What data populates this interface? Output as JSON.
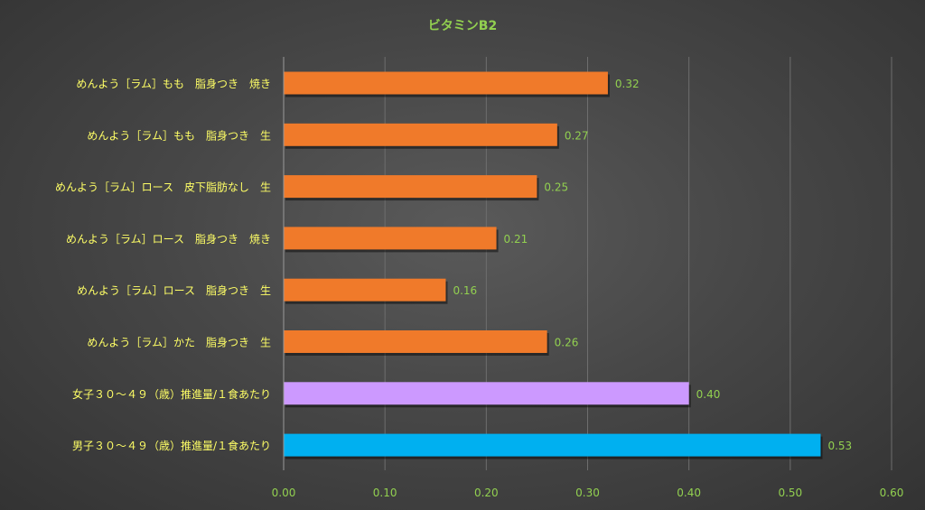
{
  "chart_data": {
    "type": "bar",
    "orientation": "horizontal",
    "title": "ビタミンB2",
    "categories": [
      "めんよう［ラム］もも　脂身つき　焼き",
      "めんよう［ラム］もも　脂身つき　生",
      "めんよう［ラム］ロース　皮下脂肪なし　生",
      "めんよう［ラム］ロース　脂身つき　焼き",
      "めんよう［ラム］ロース　脂身つき　生",
      "めんよう［ラム］かた　脂身つき　生",
      "女子３０～４９（歳）推進量/１食あたり",
      "男子３０～４９（歳）推進量/１食あたり"
    ],
    "values": [
      0.32,
      0.27,
      0.25,
      0.21,
      0.16,
      0.26,
      0.4,
      0.53
    ],
    "value_labels": [
      "0.32",
      "0.27",
      "0.25",
      "0.21",
      "0.16",
      "0.26",
      "0.40",
      "0.53"
    ],
    "bar_colors": [
      "#f07a2a",
      "#f07a2a",
      "#f07a2a",
      "#f07a2a",
      "#f07a2a",
      "#f07a2a",
      "#cc99ff",
      "#00b0f0"
    ],
    "xlim": [
      0,
      0.6
    ],
    "xticks": [
      "0.00",
      "0.10",
      "0.20",
      "0.30",
      "0.40",
      "0.50",
      "0.60"
    ],
    "grid": "vertical",
    "legend": "none"
  },
  "colors": {
    "title": "#92d050",
    "category_label": "#ffff66",
    "tick_label": "#92d050",
    "data_label": "#92d050",
    "gridline": "#6e6e6e",
    "axis_line": "#9a9a9a"
  }
}
